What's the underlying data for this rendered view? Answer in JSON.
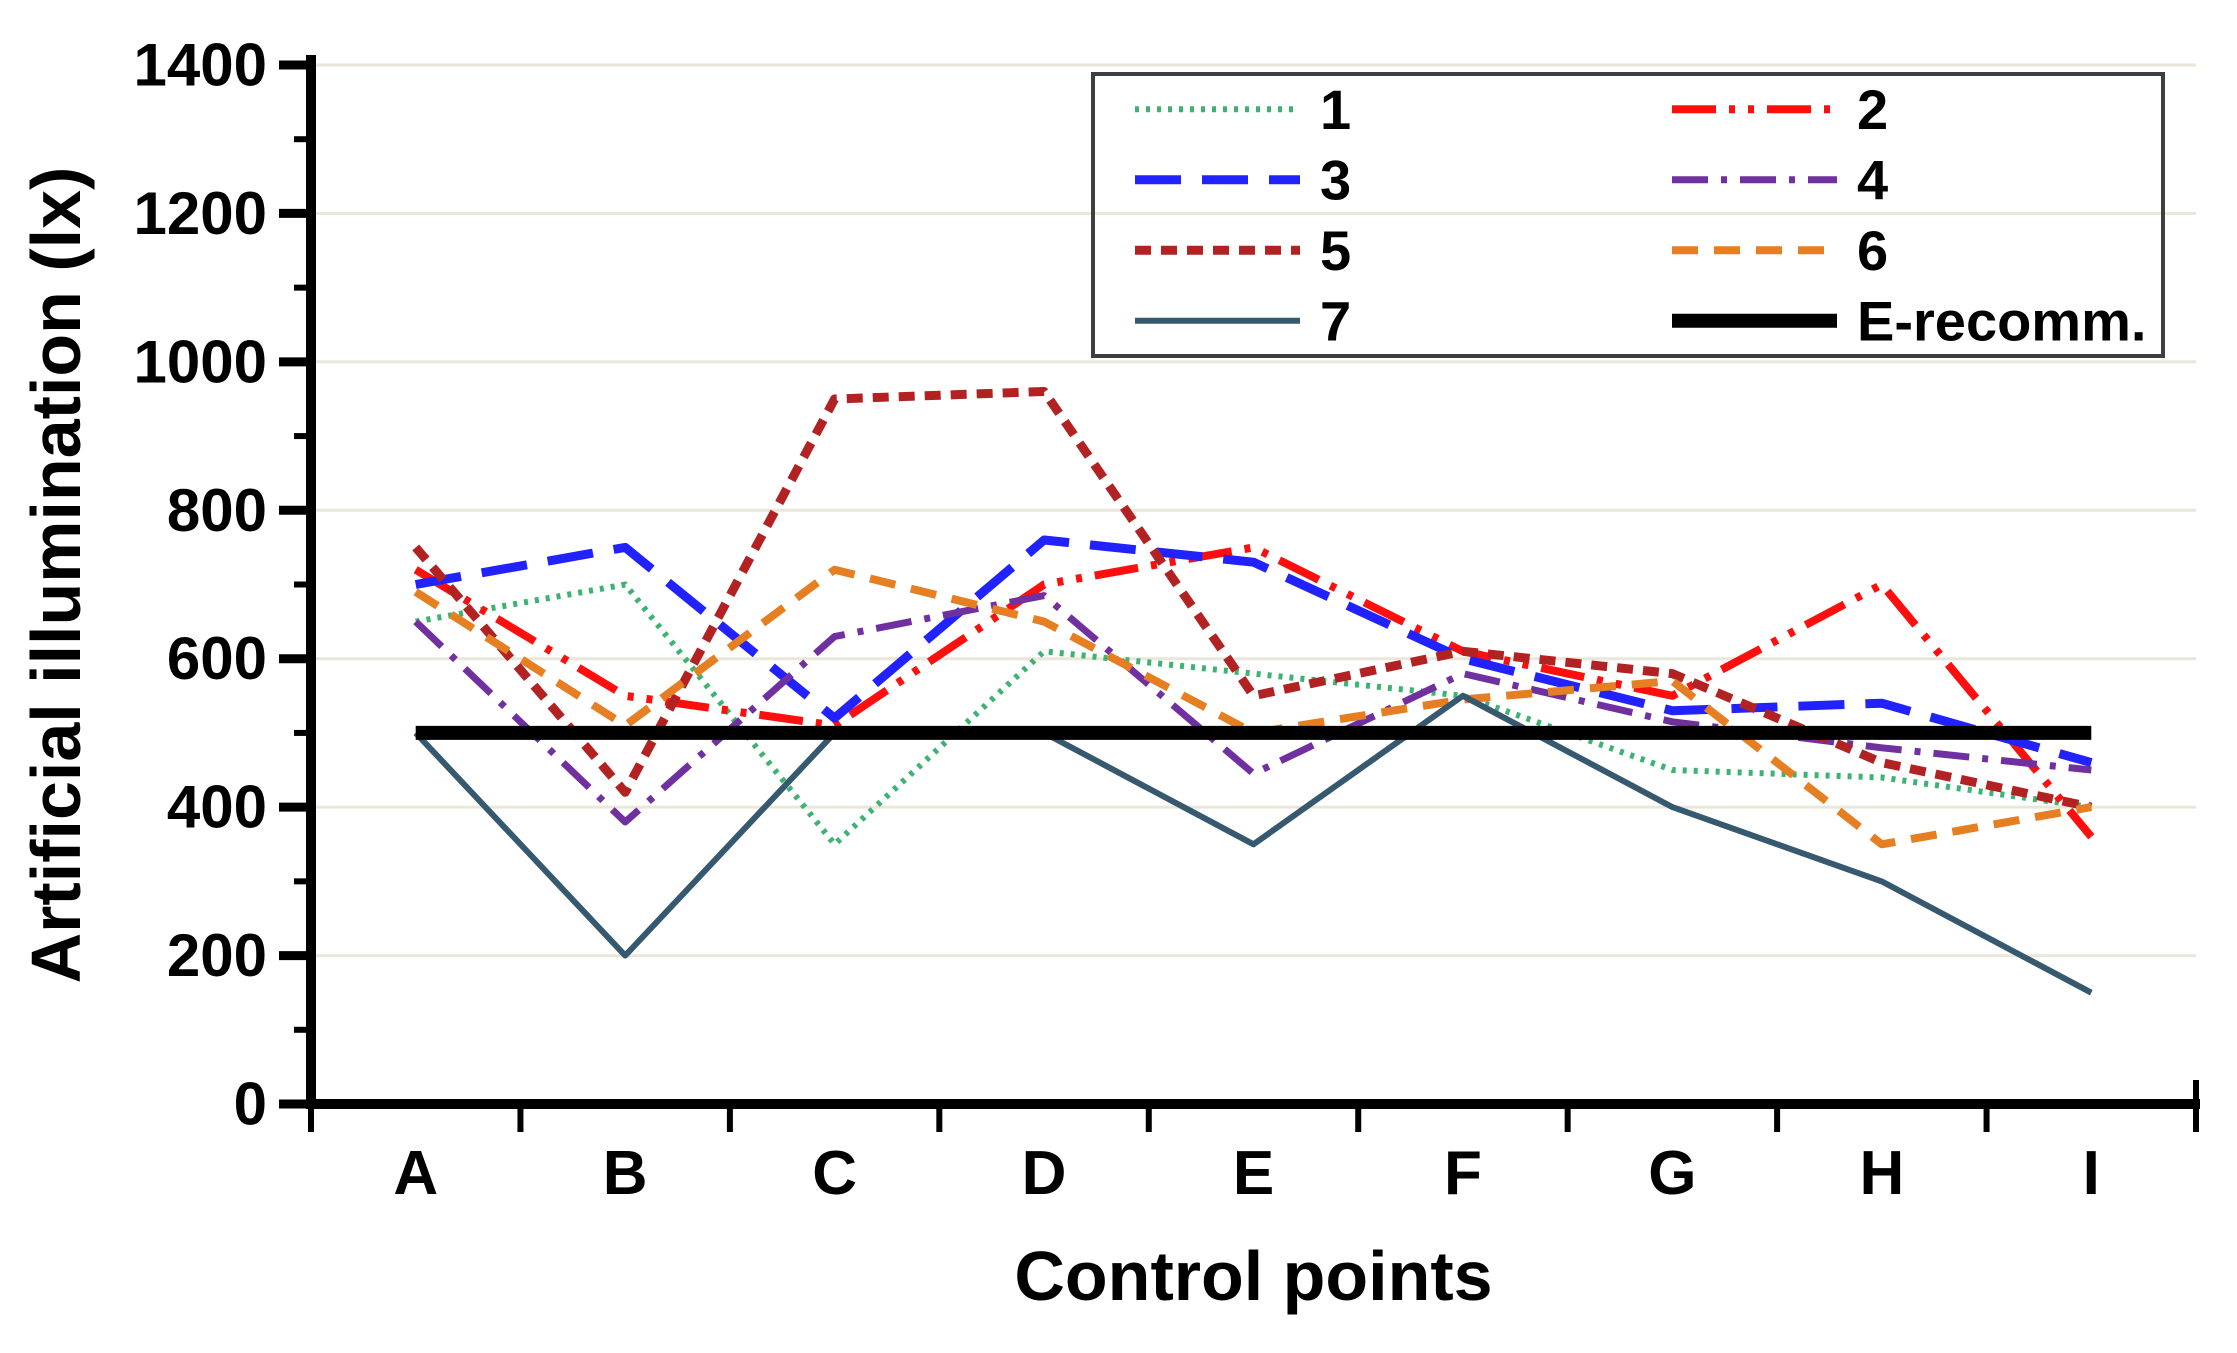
{
  "chart_data": {
    "type": "line",
    "title": "",
    "xlabel": "Control points",
    "ylabel": "Artificial illumination (lx)",
    "categories": [
      "A",
      "B",
      "C",
      "D",
      "E",
      "F",
      "G",
      "H",
      "I"
    ],
    "ylim": [
      0,
      1400
    ],
    "y_ticks": [
      "0",
      "200",
      "400",
      "600",
      "800",
      "1000",
      "1200",
      "1400"
    ],
    "y_tick_step": 200,
    "y_minor_tick_step": 100,
    "grid": "horizontal major gridlines every 200 lx, light beige",
    "legend_position": "top-right inside plot, boxed, 2 columns",
    "series": [
      {
        "name": "1",
        "color": "#3CB371",
        "style": "dotted",
        "values": [
          650,
          700,
          350,
          610,
          580,
          550,
          450,
          440,
          400
        ]
      },
      {
        "name": "2",
        "color": "#FF0E0E",
        "style": "dash-dot-dot",
        "values": [
          720,
          550,
          510,
          700,
          750,
          610,
          550,
          700,
          360
        ]
      },
      {
        "name": "3",
        "color": "#2222FF",
        "style": "long-dash",
        "values": [
          700,
          750,
          520,
          760,
          730,
          600,
          530,
          540,
          460
        ]
      },
      {
        "name": "4",
        "color": "#7030A0",
        "style": "dash-dot",
        "values": [
          650,
          380,
          630,
          685,
          445,
          580,
          515,
          480,
          450
        ]
      },
      {
        "name": "5",
        "color": "#B22222",
        "style": "short-dash",
        "values": [
          750,
          420,
          950,
          960,
          550,
          610,
          580,
          460,
          400
        ]
      },
      {
        "name": "6",
        "color": "#E67E22",
        "style": "dash",
        "values": [
          690,
          510,
          720,
          650,
          500,
          545,
          570,
          350,
          400
        ]
      },
      {
        "name": "7",
        "color": "#36596F",
        "style": "solid",
        "values": [
          500,
          200,
          500,
          500,
          350,
          550,
          400,
          300,
          150
        ]
      },
      {
        "name": "E-recomm.",
        "color": "#000000",
        "style": "solid-thick",
        "values": [
          500,
          500,
          500,
          500,
          500,
          500,
          500,
          500,
          500
        ]
      }
    ],
    "colors": {
      "background": "#FFFFFF",
      "gridline": "#EAE6D8",
      "axis": "#000000",
      "legend_border": "#3F3F3F"
    }
  }
}
